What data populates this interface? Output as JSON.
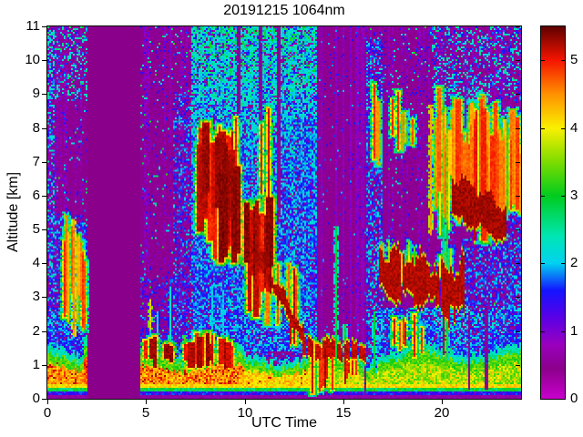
{
  "chart_data": {
    "type": "heatmap",
    "title": "20191215 1064nm",
    "xlabel": "UTC Time",
    "ylabel": "Altitude [km]",
    "xlim": [
      0,
      24
    ],
    "ylim": [
      0,
      11
    ],
    "xticks": [
      0,
      5,
      10,
      15,
      20
    ],
    "yticks": [
      0,
      1,
      2,
      3,
      4,
      5,
      6,
      7,
      8,
      9,
      10,
      11
    ],
    "grid": false,
    "colorbar": {
      "vmin": 0,
      "vmax": 5.5,
      "ticks": [
        0,
        1,
        2,
        3,
        4,
        5
      ],
      "position": "right"
    },
    "colormap": [
      [
        0.0,
        "#C800CC"
      ],
      [
        0.45,
        "#8B008B"
      ],
      [
        0.8,
        "#9A00BE"
      ],
      [
        1.2,
        "#5A00E6"
      ],
      [
        1.6,
        "#1414FF"
      ],
      [
        2.0,
        "#00D2F0"
      ],
      [
        2.4,
        "#00E6B4"
      ],
      [
        3.0,
        "#00CC1E"
      ],
      [
        3.5,
        "#7DDC00"
      ],
      [
        4.0,
        "#FAF000"
      ],
      [
        4.5,
        "#FF9100"
      ],
      [
        5.0,
        "#F51400"
      ],
      [
        5.5,
        "#5E0000"
      ]
    ],
    "seed": 20191215,
    "background": {
      "base": 0.45,
      "speckle_density": [
        0.03,
        0.14
      ],
      "magenta_streak_frac": 0.32
    },
    "no_data_gap": {
      "x": [
        2.05,
        4.72
      ],
      "value": 0.45
    },
    "noise_regions": [
      {
        "x": [
          0,
          0.35
        ],
        "y": [
          0,
          11
        ],
        "d": 0.5,
        "v": [
          0.9,
          2.6
        ]
      },
      {
        "x": [
          0,
          2.05
        ],
        "y": [
          1.1,
          2.7
        ],
        "d": 0.8,
        "v": [
          1.2,
          2.3
        ]
      },
      {
        "x": [
          0.1,
          2.05
        ],
        "y": [
          2.7,
          5.4
        ],
        "d": 0.5,
        "v": [
          1.1,
          2.2
        ]
      },
      {
        "x": [
          0,
          2.05
        ],
        "y": [
          8.8,
          11
        ],
        "d": 0.25,
        "v": [
          1.5,
          2.7
        ]
      },
      {
        "x": [
          4.72,
          7.25
        ],
        "y": [
          1.0,
          3.6
        ],
        "d": 0.3,
        "v": [
          1.1,
          2.0
        ]
      },
      {
        "x": [
          6.4,
          7.25
        ],
        "y": [
          1.3,
          9.0
        ],
        "d": 0.4,
        "v": [
          1.1,
          2.1
        ]
      },
      {
        "x": [
          7.25,
          13.62
        ],
        "y": [
          1.4,
          11
        ],
        "d": 0.85,
        "v": [
          1.25,
          2.3
        ],
        "hiboost": 1.1
      },
      {
        "x": [
          13.62,
          16.2
        ],
        "y": [
          1.05,
          1.6
        ],
        "d": 0.6,
        "v": [
          1.3,
          2.2
        ]
      },
      {
        "x": [
          16.15,
          16.95
        ],
        "y": [
          0.3,
          10.6
        ],
        "d": 0.55,
        "v": [
          1.2,
          2.3
        ]
      },
      {
        "x": [
          16.75,
          24
        ],
        "y": [
          0.25,
          2.7
        ],
        "d": 0.75,
        "v": [
          1.3,
          2.3
        ]
      },
      {
        "x": [
          21.0,
          24
        ],
        "y": [
          2.7,
          4.7
        ],
        "d": 0.6,
        "v": [
          1.2,
          2.2
        ]
      },
      {
        "x": [
          22.75,
          24
        ],
        "y": [
          4.7,
          8.6
        ],
        "d": 0.45,
        "v": [
          1.2,
          2.1
        ]
      },
      {
        "x": [
          19.5,
          24
        ],
        "y": [
          8.8,
          11
        ],
        "d": 0.3,
        "v": [
          1.4,
          2.6
        ]
      }
    ],
    "attenuation_columns": [
      {
        "x": [
          13.62,
          16.12
        ],
        "y": [
          1.6,
          11
        ],
        "streaky": true
      },
      {
        "x": [
          9.6,
          9.8
        ],
        "y": [
          6.2,
          11
        ],
        "streaky": false
      },
      {
        "x": [
          10.72,
          10.9
        ],
        "y": [
          5.8,
          11
        ],
        "streaky": false
      },
      {
        "x": [
          11.62,
          11.78
        ],
        "y": [
          5.2,
          11
        ],
        "streaky": false
      },
      {
        "x": [
          13.35,
          13.43
        ],
        "y": [
          0.12,
          1.6
        ],
        "streaky": false
      },
      {
        "x": [
          13.55,
          13.62
        ],
        "y": [
          0.12,
          1.6
        ],
        "streaky": false
      },
      {
        "x": [
          14.12,
          14.22
        ],
        "y": [
          0.12,
          1.6
        ],
        "streaky": false
      },
      {
        "x": [
          14.42,
          14.52
        ],
        "y": [
          0.12,
          1.3
        ],
        "streaky": false
      },
      {
        "x": [
          16.05,
          16.18
        ],
        "y": [
          0.12,
          1.1
        ],
        "streaky": false
      },
      {
        "x": [
          21.28,
          21.42
        ],
        "y": [
          0.25,
          2.6
        ],
        "streaky": false
      },
      {
        "x": [
          22.2,
          22.34
        ],
        "y": [
          0.25,
          2.6
        ],
        "streaky": false
      }
    ],
    "boundary_layer": {
      "bottom_purple_top": 0.12,
      "segments": [
        {
          "x": [
            0,
            1.8
          ],
          "core": 4.35,
          "redp": 0.12,
          "h": 1.5,
          "yel": false
        },
        {
          "x": [
            1.8,
            2.05
          ],
          "core": 4.55,
          "redp": 0.3,
          "h": 2.1,
          "yel": false
        },
        {
          "x": [
            4.72,
            10
          ],
          "core": 4.35,
          "redp": 0.18,
          "h": 1.45,
          "yel": false
        },
        {
          "x": [
            10,
            13.3
          ],
          "core": 4.1,
          "redp": 0.06,
          "h": 1.3,
          "yel": false
        },
        {
          "x": [
            13.3,
            16.75
          ],
          "core": 3.55,
          "redp": 0.0,
          "h": 1.25,
          "yel": true
        },
        {
          "x": [
            16.75,
            24
          ],
          "core": 3.45,
          "redp": 0.0,
          "h": 1.5,
          "yel": true
        }
      ]
    },
    "cloud_streak_clusters": [
      {
        "x": [
          7.8,
          12.0
        ],
        "n": 7,
        "top": [
          8.2,
          8.2
        ],
        "jt": 0.5,
        "bot": [
          6.6,
          5.4
        ],
        "jb": 0.5,
        "w": [
          0.06,
          0.14
        ],
        "v": [
          4.6,
          5.3
        ]
      },
      {
        "x": [
          7.75,
          9.65
        ],
        "n": 24,
        "top": [
          7.9,
          7.3
        ],
        "jt": 0.5,
        "bot": [
          5.6,
          5.0
        ],
        "jb": 0.7,
        "w": [
          0.12,
          0.4
        ],
        "v": [
          5.0,
          5.5
        ]
      },
      {
        "x": [
          8.4,
          11.3
        ],
        "n": 22,
        "top": [
          6.6,
          5.6
        ],
        "jt": 0.4,
        "bot": [
          4.4,
          3.5
        ],
        "jb": 0.5,
        "w": [
          0.1,
          0.35
        ],
        "v": [
          5.0,
          5.5
        ]
      },
      {
        "x": [
          9.7,
          12.6
        ],
        "n": 9,
        "top": [
          4.8,
          3.9
        ],
        "jt": 0.3,
        "bot": [
          3.0,
          2.1
        ],
        "jb": 0.5,
        "w": [
          0.07,
          0.18
        ],
        "v": [
          4.7,
          5.4
        ]
      },
      {
        "x": [
          0.85,
          2.02
        ],
        "n": 10,
        "top": [
          5.2,
          4.6
        ],
        "jt": 0.6,
        "bot": [
          2.9,
          2.3
        ],
        "jb": 0.6,
        "w": [
          0.05,
          0.13
        ],
        "v": [
          4.2,
          5.2
        ]
      },
      {
        "x": [
          4.95,
          9.3
        ],
        "n": 20,
        "top": [
          1.78,
          1.7
        ],
        "jt": 0.2,
        "bot": [
          1.1,
          1.05
        ],
        "jb": 0.15,
        "w": [
          0.12,
          0.4
        ],
        "v": [
          5.0,
          5.5
        ]
      },
      {
        "x": [
          13.35,
          14.55
        ],
        "n": 8,
        "top": [
          1.55,
          1.7
        ],
        "jt": 0.15,
        "bot": [
          0.4,
          0.5
        ],
        "jb": 0.2,
        "w": [
          0.06,
          0.13
        ],
        "v": [
          5.0,
          5.4
        ]
      },
      {
        "x": [
          14.9,
          15.6
        ],
        "n": 4,
        "top": [
          1.15,
          1.1
        ],
        "jt": 0.1,
        "bot": [
          0.75,
          0.7
        ],
        "jb": 0.1,
        "w": [
          0.08,
          0.16
        ],
        "v": [
          5.0,
          5.4
        ]
      },
      {
        "x": [
          16.3,
          18.7
        ],
        "n": 9,
        "top": [
          9.3,
          8.6
        ],
        "jt": 0.5,
        "bot": [
          7.3,
          7.7
        ],
        "jb": 0.4,
        "w": [
          0.06,
          0.15
        ],
        "v": [
          3.8,
          5.2
        ]
      },
      {
        "x": [
          16.8,
          20.8
        ],
        "n": 10,
        "top": [
          4.6,
          4.1
        ],
        "jt": 0.3,
        "bot": [
          3.9,
          3.4
        ],
        "jb": 0.3,
        "w": [
          0.05,
          0.12
        ],
        "v": [
          3.3,
          4.6
        ]
      },
      {
        "x": [
          19.45,
          22.7
        ],
        "n": 42,
        "top": [
          8.6,
          8.1
        ],
        "jt": 0.8,
        "bot": [
          6.3,
          5.2
        ],
        "jb": 0.7,
        "w": [
          0.08,
          0.28
        ],
        "v": [
          4.3,
          5.2
        ]
      },
      {
        "x": [
          22.7,
          24
        ],
        "n": 14,
        "top": [
          8.0,
          7.9
        ],
        "jt": 0.7,
        "bot": [
          5.6,
          6.0
        ],
        "jb": 0.5,
        "w": [
          0.06,
          0.2
        ],
        "v": [
          4.2,
          5.0
        ]
      },
      {
        "x": [
          19.5,
          20.45
        ],
        "n": 6,
        "top": [
          8.0,
          8.3
        ],
        "jt": 0.5,
        "bot": [
          5.2,
          5.6
        ],
        "jb": 0.8,
        "w": [
          0.05,
          0.12
        ],
        "v": [
          4.0,
          4.9
        ]
      },
      {
        "x": [
          17.4,
          19.3
        ],
        "n": 6,
        "top": [
          2.4,
          2.2
        ],
        "jt": 0.2,
        "bot": [
          1.4,
          1.3
        ],
        "jb": 0.3,
        "w": [
          0.06,
          0.13
        ],
        "v": [
          4.9,
          5.4
        ]
      }
    ],
    "cloud_layers": [
      {
        "x": [
          10.35,
          12.95
        ],
        "top": [
          4.75,
          2.05
        ],
        "bot": [
          4.35,
          1.7
        ],
        "wob": 0.15,
        "broken": 0,
        "v": 5.35,
        "dripP": 0.06,
        "dripLen": 0.8
      },
      {
        "x": [
          12.9,
          16.2
        ],
        "top": [
          1.72,
          1.6
        ],
        "bot": [
          1.28,
          1.18
        ],
        "wob": 0.08,
        "broken": 0.15,
        "v": 5.3,
        "dripP": 0.08,
        "dripLen": 0.7
      },
      {
        "x": [
          16.78,
          21.0
        ],
        "top": [
          4.45,
          3.6
        ],
        "bot": [
          3.25,
          2.6
        ],
        "wob": 0.3,
        "broken": 0.06,
        "v": 5.35,
        "dripP": 0.07,
        "dripLen": 1.2,
        "bump": [
          20.25,
          0.45
        ]
      },
      {
        "x": [
          20.5,
          23.2
        ],
        "top": [
          6.6,
          5.7
        ],
        "bot": [
          5.45,
          4.75
        ],
        "wob": 0.18,
        "broken": 0,
        "v": 5.4,
        "dripP": 0.05,
        "dripLen": 0.6
      }
    ],
    "thin_lines": [
      {
        "x": 5.15,
        "y": [
          0.9,
          2.95
        ],
        "w": 0.08,
        "v": 2.2
      },
      {
        "x": 5.15,
        "y": [
          2.1,
          2.95
        ],
        "w": 0.07,
        "v": 4.4
      },
      {
        "x": 5.55,
        "y": [
          0.9,
          2.6
        ],
        "w": 0.07,
        "v": 2.3
      },
      {
        "x": 6.22,
        "y": [
          0.45,
          1.9
        ],
        "w": 0.2,
        "v": 2.6
      },
      {
        "x": 6.22,
        "y": [
          1.9,
          3.35
        ],
        "w": 0.08,
        "v": 2.4
      },
      {
        "x": 6.95,
        "y": [
          1.0,
          1.9
        ],
        "w": 0.07,
        "v": 3.4
      },
      {
        "x": 8.35,
        "y": [
          1.5,
          3.4
        ],
        "w": 0.07,
        "v": 2.2
      },
      {
        "x": 8.9,
        "y": [
          1.5,
          3.2
        ],
        "w": 0.07,
        "v": 2.2
      },
      {
        "x": 14.62,
        "y": [
          0.4,
          5.1
        ],
        "w": 0.08,
        "v": 3.1
      },
      {
        "x": 15.0,
        "y": [
          0.3,
          2.2
        ],
        "w": 0.05,
        "v": 3.2
      },
      {
        "x": 16.52,
        "y": [
          0.4,
          2.6
        ],
        "w": 0.06,
        "v": 3.0
      },
      {
        "x": 19.4,
        "y": [
          4.9,
          8.7
        ],
        "w": 0.07,
        "v": 4.6
      },
      {
        "x": 20.02,
        "y": [
          0.6,
          9.2
        ],
        "w": 0.07,
        "v": 2.9
      },
      {
        "x": 20.18,
        "y": [
          0.5,
          8.0
        ],
        "w": 0.06,
        "v": 3.3
      },
      {
        "x": 1.3,
        "y": [
          1.9,
          5.3
        ],
        "w": 0.06,
        "v": 4.7
      }
    ]
  }
}
